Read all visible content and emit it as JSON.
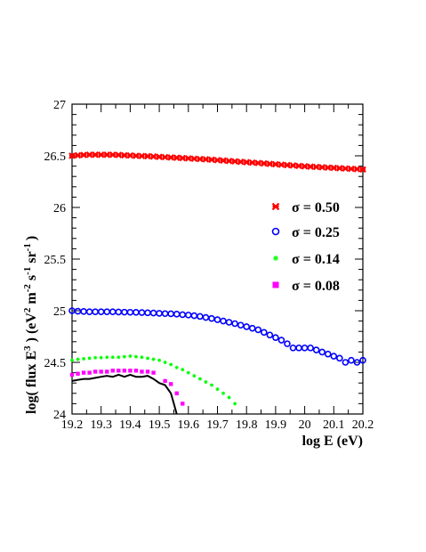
{
  "chart_data": {
    "type": "scatter",
    "xlabel": "log E (eV)",
    "ylabel": {
      "base": "log( flux E",
      "exp1": "3",
      "mid1": ") (eV",
      "exp2": "2",
      "mid2": "m",
      "exp3": "-2",
      "mid3": "s",
      "exp4": "-1",
      "mid4": "sr",
      "exp5": "-1",
      "end": ")"
    },
    "xlim": [
      19.2,
      20.2
    ],
    "ylim": [
      24,
      27
    ],
    "x_ticks": [
      19.2,
      19.3,
      19.4,
      19.5,
      19.6,
      19.7,
      19.8,
      19.9,
      20,
      20.1,
      20.2
    ],
    "x_tick_labels": [
      "19.2",
      "19.3",
      "19.4",
      "19.5",
      "19.6",
      "19.7",
      "19.8",
      "19.9",
      "20",
      "20.1",
      "20.2"
    ],
    "y_ticks": [
      24,
      24.5,
      25,
      25.5,
      26,
      26.5,
      27
    ],
    "y_tick_labels": [
      "24",
      "24.5",
      "25",
      "25.5",
      "26",
      "26.5",
      "27"
    ],
    "grid": false,
    "legend_position": "right-middle",
    "series": [
      {
        "name": "σ = 0.50",
        "marker": "cross",
        "color": "#ff0000",
        "x": [
          19.2,
          19.22,
          19.24,
          19.26,
          19.28,
          19.3,
          19.32,
          19.34,
          19.36,
          19.38,
          19.4,
          19.42,
          19.44,
          19.46,
          19.48,
          19.5,
          19.52,
          19.54,
          19.56,
          19.58,
          19.6,
          19.62,
          19.64,
          19.66,
          19.68,
          19.7,
          19.72,
          19.74,
          19.76,
          19.78,
          19.8,
          19.82,
          19.84,
          19.86,
          19.88,
          19.9,
          19.92,
          19.94,
          19.96,
          19.98,
          20,
          20.02,
          20.04,
          20.06,
          20.08,
          20.1,
          20.12,
          20.14,
          20.16,
          20.18,
          20.2
        ],
        "y": [
          26.5,
          26.505,
          26.508,
          26.51,
          26.51,
          26.51,
          26.51,
          26.51,
          26.508,
          26.505,
          26.503,
          26.5,
          26.498,
          26.496,
          26.493,
          26.49,
          26.487,
          26.484,
          26.481,
          26.478,
          26.475,
          26.472,
          26.469,
          26.466,
          26.462,
          26.458,
          26.454,
          26.45,
          26.446,
          26.442,
          26.438,
          26.434,
          26.43,
          26.426,
          26.422,
          26.418,
          26.414,
          26.41,
          26.406,
          26.402,
          26.398,
          26.395,
          26.392,
          26.389,
          26.386,
          26.383,
          26.38,
          26.377,
          26.374,
          26.371,
          26.368
        ]
      },
      {
        "name": "σ = 0.25",
        "marker": "circle",
        "color": "#0000ff",
        "x": [
          19.2,
          19.22,
          19.24,
          19.26,
          19.28,
          19.3,
          19.32,
          19.34,
          19.36,
          19.38,
          19.4,
          19.42,
          19.44,
          19.46,
          19.48,
          19.5,
          19.52,
          19.54,
          19.56,
          19.58,
          19.6,
          19.62,
          19.64,
          19.66,
          19.68,
          19.7,
          19.72,
          19.74,
          19.76,
          19.78,
          19.8,
          19.82,
          19.84,
          19.86,
          19.88,
          19.9,
          19.92,
          19.94,
          19.96,
          19.98,
          20,
          20.02,
          20.04,
          20.06,
          20.08,
          20.1,
          20.12,
          20.14,
          20.16,
          20.18,
          20.2
        ],
        "y": [
          25,
          24.995,
          24.993,
          24.99,
          24.99,
          24.99,
          24.99,
          24.99,
          24.988,
          24.986,
          24.985,
          24.984,
          24.982,
          24.98,
          24.978,
          24.975,
          24.972,
          24.97,
          24.967,
          24.962,
          24.958,
          24.952,
          24.945,
          24.935,
          24.925,
          24.913,
          24.9,
          24.888,
          24.875,
          24.86,
          24.845,
          24.83,
          24.815,
          24.79,
          24.765,
          24.74,
          24.715,
          24.68,
          24.64,
          24.64,
          24.64,
          24.64,
          24.62,
          24.6,
          24.58,
          24.56,
          24.54,
          24.5,
          24.52,
          24.5,
          24.52
        ]
      },
      {
        "name": "σ = 0.14",
        "marker": "star",
        "color": "#00ff00",
        "x": [
          19.2,
          19.22,
          19.24,
          19.26,
          19.28,
          19.3,
          19.32,
          19.34,
          19.36,
          19.38,
          19.4,
          19.42,
          19.44,
          19.46,
          19.48,
          19.5,
          19.52,
          19.54,
          19.56,
          19.58,
          19.6,
          19.62,
          19.64,
          19.66,
          19.68,
          19.7,
          19.72,
          19.74,
          19.76
        ],
        "y": [
          24.52,
          24.53,
          24.535,
          24.54,
          24.545,
          24.545,
          24.55,
          24.55,
          24.55,
          24.555,
          24.56,
          24.555,
          24.55,
          24.54,
          24.53,
          24.52,
          24.5,
          24.48,
          24.45,
          24.43,
          24.4,
          24.37,
          24.34,
          24.31,
          24.28,
          24.24,
          24.2,
          24.16,
          24.1
        ]
      },
      {
        "name": "σ = 0.08",
        "marker": "square",
        "color": "#ff00ff",
        "x": [
          19.2,
          19.22,
          19.24,
          19.26,
          19.28,
          19.3,
          19.32,
          19.34,
          19.36,
          19.38,
          19.4,
          19.42,
          19.44,
          19.46,
          19.48,
          19.52,
          19.54,
          19.56,
          19.58
        ],
        "y": [
          24.38,
          24.39,
          24.4,
          24.4,
          24.41,
          24.41,
          24.41,
          24.42,
          24.42,
          24.42,
          24.42,
          24.42,
          24.41,
          24.41,
          24.4,
          24.32,
          24.29,
          24.2,
          24.1
        ]
      }
    ],
    "line": {
      "color": "#000000",
      "x": [
        19.2,
        19.22,
        19.24,
        19.26,
        19.28,
        19.3,
        19.32,
        19.34,
        19.36,
        19.38,
        19.4,
        19.42,
        19.44,
        19.46,
        19.48,
        19.5,
        19.52,
        19.54,
        19.55,
        19.56
      ],
      "y": [
        24.32,
        24.33,
        24.34,
        24.34,
        24.35,
        24.36,
        24.37,
        24.36,
        24.38,
        24.36,
        24.38,
        24.36,
        24.36,
        24.37,
        24.34,
        24.3,
        24.28,
        24.2,
        24.1,
        24.0
      ]
    }
  }
}
